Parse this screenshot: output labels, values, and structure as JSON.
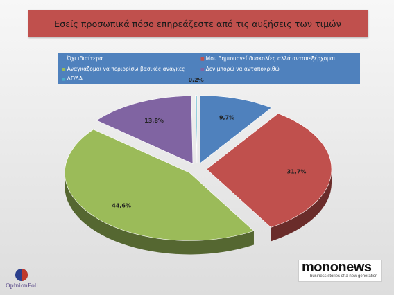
{
  "title": "Εσείς προσωπικά πόσο επηρεάζεστε  από τις αυξήσεις των τιμών",
  "legend": [
    {
      "label": "Όχι ιδιαίτερα",
      "color": "#4f81bd"
    },
    {
      "label": "Μου δημιουργεί δυσκολίες αλλά ανταπεξέρχομαι",
      "color": "#c0504d"
    },
    {
      "label": "Αναγκάζομαι να περιορίσω βασικές ανάγκες",
      "color": "#9bbb59"
    },
    {
      "label": "Δεν μπορώ να ανταποκριθώ",
      "color": "#8064a2"
    },
    {
      "label": "ΔΓ/ΔΑ",
      "color": "#4bacc6"
    }
  ],
  "chart_data": {
    "type": "pie",
    "title": "Εσείς προσωπικά πόσο επηρεάζεστε  από τις αυξήσεις των τιμών",
    "categories": [
      "Όχι ιδιαίτερα",
      "Μου δημιουργεί δυσκολίες αλλά ανταπεξέρχομαι",
      "Αναγκάζομαι να περιορίσω βασικές ανάγκες",
      "Δεν μπορώ να ανταποκριθώ",
      "ΔΓ/ΔΑ"
    ],
    "values": [
      9.7,
      31.7,
      44.6,
      13.8,
      0.2
    ],
    "labels": [
      "9,7%",
      "31,7%",
      "44,6%",
      "13,8%",
      "0,2%"
    ],
    "colors": [
      "#4f81bd",
      "#c0504d",
      "#9bbb59",
      "#8064a2",
      "#4bacc6"
    ],
    "style": "3d-exploded"
  },
  "logos": {
    "opinionpoll": "OpinionPoll",
    "mononews": "mononews",
    "mononews_tagline": "business stories of a new generation"
  }
}
